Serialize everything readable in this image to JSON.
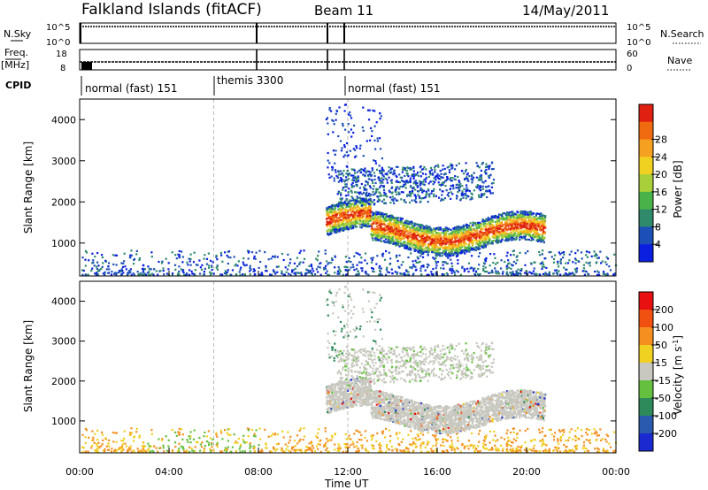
{
  "header": {
    "title": "Falkland Islands (fitACF)",
    "beam": "Beam 11",
    "date": "14/May/2011"
  },
  "top_panels": {
    "nsky_label": "N.Sky",
    "nsearch_label": "N.Search",
    "freq_label": "Freq.",
    "freq_unit": "[MHz]",
    "nave_label": "Nave",
    "cpid_label": "CPID",
    "nsky_ticks": [
      "10^5",
      "10^0"
    ],
    "nsearch_ticks": [
      "10^5",
      "10^0"
    ],
    "freq_ticks": [
      "18",
      "8"
    ],
    "nave_ticks": [
      "60",
      "0"
    ]
  },
  "cpid_segments": [
    {
      "label": "normal (fast) 151",
      "start_hour": 0
    },
    {
      "label": "themis 3300",
      "start_hour": 6
    },
    {
      "label": "normal (fast) 151",
      "start_hour": 12
    }
  ],
  "chart_data": [
    {
      "type": "heatmap",
      "title": "",
      "ylabel": "Slant Range [km]",
      "xlabel": "",
      "xlim": [
        0,
        24
      ],
      "ylim": [
        200,
        4500
      ],
      "yticks": [
        "1000",
        "2000",
        "3000",
        "4000"
      ],
      "colorbar": {
        "label": "Power [dB]",
        "ticks": [
          "4",
          "8",
          "12",
          "16",
          "20",
          "24",
          "28"
        ],
        "colors": [
          "#0a1fe0",
          "#1d4fb8",
          "#2e8a6a",
          "#49b34a",
          "#a9cf3a",
          "#f0d020",
          "#f5a020",
          "#f06a10",
          "#e02010"
        ]
      }
    },
    {
      "type": "heatmap",
      "title": "",
      "ylabel": "Slant Range [km]",
      "xlabel": "Time UT",
      "xlim": [
        0,
        24
      ],
      "ylim": [
        200,
        4500
      ],
      "yticks": [
        "1000",
        "2000",
        "3000",
        "4000"
      ],
      "xticks": [
        "00:00",
        "04:00",
        "08:00",
        "12:00",
        "16:00",
        "20:00",
        "00:00"
      ],
      "colorbar": {
        "label": "Velocity [m s",
        "label_sup": "-1",
        "label_end": "]",
        "ticks": [
          "200",
          "100",
          "50",
          "15",
          "-15",
          "-50",
          "-100",
          "-200"
        ],
        "colors": [
          "#1a2ad0",
          "#2a5ab0",
          "#2e8a5a",
          "#66c040",
          "#c8c8c0",
          "#f0d020",
          "#f59020",
          "#f05010",
          "#e81010"
        ]
      }
    }
  ]
}
